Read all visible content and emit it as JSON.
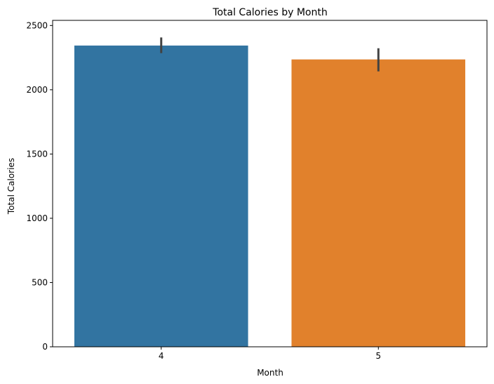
{
  "chart_data": {
    "type": "bar",
    "title": "Total Calories by Month",
    "xlabel": "Month",
    "ylabel": "Total Calories",
    "categories": [
      "4",
      "5"
    ],
    "values": [
      2344,
      2236
    ],
    "error_bars": [
      {
        "low": 2285,
        "high": 2407
      },
      {
        "low": 2143,
        "high": 2323
      }
    ],
    "colors": [
      "#3274a1",
      "#e1812c"
    ],
    "error_bar_color": "#424242",
    "ylim": [
      0,
      2540
    ],
    "yticks": [
      0,
      500,
      1000,
      1500,
      2000,
      2500
    ],
    "grid": false,
    "legend": "none"
  }
}
